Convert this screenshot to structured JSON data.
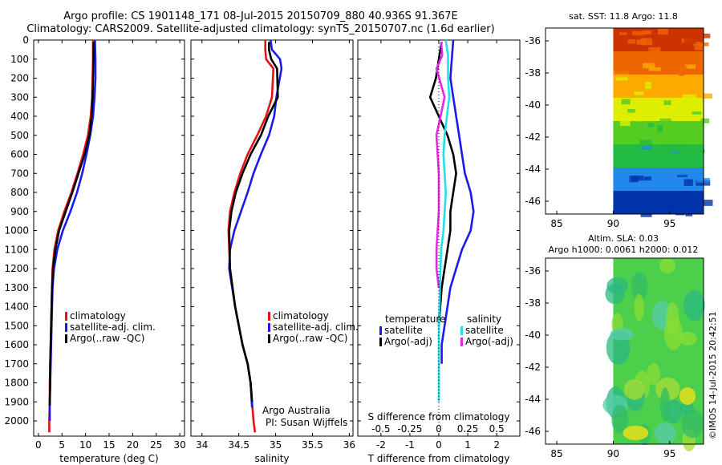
{
  "title": {
    "line1": "Argo profile: CS 1901148_171 08-Jul-2015 20150709_880 40.936S 91.367E",
    "line2": "Climatology: CARS2009. Satellite-adjusted climatology: synTS_20150707.nc (1.6d earlier)"
  },
  "credit": "©IMOS 14-Jul-2015 20:42:51",
  "colors": {
    "climatology": "#e81010",
    "satellite": "#1a1aee",
    "argo": "#000000",
    "satellite_s": "#22e0e8",
    "argo_s": "#ee22ee"
  },
  "chart_data": [
    {
      "id": "temperature",
      "type": "line",
      "xlabel": "temperature (deg C)",
      "ylabel": "",
      "xlim": [
        -1,
        31
      ],
      "ylim": [
        2080,
        0
      ],
      "xticks": [
        "0",
        "5",
        "10",
        "15",
        "20",
        "25",
        "30"
      ],
      "xtick_values": [
        0,
        5,
        10,
        15,
        20,
        25,
        30
      ],
      "yticks": [
        "0",
        "100",
        "200",
        "300",
        "400",
        "500",
        "600",
        "700",
        "800",
        "900",
        "1000",
        "1100",
        "1200",
        "1300",
        "1400",
        "1500",
        "1600",
        "1700",
        "1800",
        "1900",
        "2000"
      ],
      "ytick_values": [
        0,
        100,
        200,
        300,
        400,
        500,
        600,
        700,
        800,
        900,
        1000,
        1100,
        1200,
        1300,
        1400,
        1500,
        1600,
        1700,
        1800,
        1900,
        2000
      ],
      "legend": [
        "climatology",
        "satellite-adj. clim.",
        "Argo(..raw -QC)"
      ],
      "series": [
        {
          "name": "climatology",
          "x": [
            11.6,
            11.6,
            11.5,
            11.4,
            11.1,
            10.5,
            9.5,
            8.3,
            7.0,
            5.5,
            4.2,
            3.4,
            3.0,
            2.8,
            2.6,
            2.5,
            2.4,
            2.4,
            2.3,
            2.3
          ],
          "y": [
            0,
            100,
            200,
            300,
            400,
            500,
            600,
            700,
            800,
            900,
            1000,
            1100,
            1200,
            1400,
            1600,
            1700,
            1800,
            1900,
            2000,
            2060
          ]
        },
        {
          "name": "satellite-adj. clim.",
          "x": [
            12.0,
            12.1,
            12.1,
            11.9,
            11.6,
            11.0,
            10.2,
            9.3,
            8.2,
            6.8,
            5.2,
            4.0,
            3.3,
            3.0,
            2.8,
            2.6,
            2.5,
            2.4,
            2.4
          ],
          "y": [
            0,
            100,
            200,
            300,
            400,
            500,
            600,
            700,
            800,
            900,
            1000,
            1100,
            1200,
            1300,
            1500,
            1700,
            1800,
            1900,
            2000
          ]
        },
        {
          "name": "Argo(..raw -QC)",
          "x": [
            11.7,
            11.7,
            11.6,
            11.5,
            11.3,
            10.8,
            9.8,
            8.5,
            7.2,
            5.8,
            4.4,
            3.6,
            3.1,
            2.9,
            2.7,
            2.5,
            2.5,
            2.4
          ],
          "y": [
            10,
            100,
            200,
            300,
            400,
            500,
            600,
            700,
            800,
            900,
            1000,
            1100,
            1200,
            1300,
            1500,
            1700,
            1800,
            1920
          ]
        }
      ]
    },
    {
      "id": "salinity",
      "type": "line",
      "xlabel": "salinity",
      "ylabel": "",
      "xlim": [
        33.85,
        36.05
      ],
      "ylim": [
        2080,
        0
      ],
      "xticks": [
        "34",
        "34.5",
        "35",
        "35.5",
        "36"
      ],
      "xtick_values": [
        34,
        34.5,
        35,
        35.5,
        36
      ],
      "legend": [
        "climatology",
        "satellite-adj. clim.",
        "Argo(..raw -QC)"
      ],
      "annotation": [
        "Argo Australia",
        "PI: Susan Wijffels"
      ],
      "series": [
        {
          "name": "climatology",
          "x": [
            34.86,
            34.86,
            34.87,
            34.97,
            34.95,
            34.87,
            34.75,
            34.62,
            34.52,
            34.44,
            34.38,
            34.36,
            34.38,
            34.45,
            34.55,
            34.62,
            34.66,
            34.68,
            34.7,
            34.72
          ],
          "y": [
            0,
            50,
            100,
            150,
            300,
            400,
            500,
            600,
            700,
            800,
            900,
            1000,
            1200,
            1400,
            1600,
            1700,
            1800,
            1900,
            2000,
            2060
          ]
        },
        {
          "name": "satellite-adj. clim.",
          "x": [
            34.93,
            34.95,
            35.06,
            35.08,
            35.01,
            34.98,
            34.91,
            34.8,
            34.7,
            34.62,
            34.53,
            34.44,
            34.38,
            34.37,
            34.45,
            34.55,
            34.62,
            34.66,
            34.68
          ],
          "y": [
            0,
            50,
            100,
            150,
            300,
            400,
            500,
            600,
            700,
            800,
            900,
            1000,
            1100,
            1200,
            1400,
            1600,
            1700,
            1800,
            1930
          ]
        },
        {
          "name": "Argo(..raw -QC)",
          "x": [
            34.91,
            34.91,
            34.94,
            35.02,
            35.03,
            34.9,
            34.8,
            34.66,
            34.55,
            34.46,
            34.4,
            34.37,
            34.38,
            34.45,
            34.55,
            34.62,
            34.66,
            34.68
          ],
          "y": [
            10,
            50,
            100,
            150,
            300,
            400,
            500,
            600,
            700,
            800,
            900,
            1000,
            1200,
            1400,
            1600,
            1700,
            1800,
            1900
          ]
        }
      ]
    },
    {
      "id": "difference",
      "type": "line",
      "xlabel": "T difference from climatology",
      "xlabel_top": "S difference from climatology",
      "xlim": [
        -2.8,
        2.8
      ],
      "ylim": [
        2080,
        0
      ],
      "xticks": [
        "-2",
        "-1",
        "0",
        "1",
        "2"
      ],
      "xtick_values": [
        -2,
        -1,
        0,
        1,
        2
      ],
      "xticks_top": [
        "-0.5",
        "-0.25",
        "0",
        "0.25",
        "0.5"
      ],
      "xtick_top_values": [
        -0.5,
        -0.25,
        0,
        0.25,
        0.5
      ],
      "legend_headers": [
        "temperature",
        "salinity"
      ],
      "legend": [
        "satellite",
        "Argo(-adj)",
        "satellite",
        "Argo(-adj)"
      ],
      "series": [
        {
          "name": "satellite",
          "quantity": "temperature",
          "x": [
            0.5,
            0.45,
            0.4,
            0.5,
            0.6,
            0.7,
            0.8,
            0.9,
            1.1,
            1.2,
            1.1,
            0.8,
            0.6,
            0.4,
            0.3,
            0.2,
            0.1,
            0.1
          ],
          "y": [
            0,
            100,
            200,
            300,
            400,
            500,
            600,
            700,
            800,
            900,
            1000,
            1100,
            1200,
            1300,
            1400,
            1500,
            1600,
            1700
          ]
        },
        {
          "name": "Argo(-adj)",
          "quantity": "temperature",
          "x": [
            0.1,
            0.0,
            -0.1,
            -0.3,
            0.0,
            0.3,
            0.5,
            0.6,
            0.5,
            0.4,
            0.4,
            0.3,
            0.2,
            0.1,
            0.05,
            0.0
          ],
          "y": [
            10,
            100,
            200,
            300,
            400,
            500,
            600,
            700,
            800,
            900,
            1000,
            1100,
            1200,
            1300,
            1400,
            1500
          ]
        },
        {
          "name": "satellite",
          "quantity": "salinity",
          "x": [
            0.06,
            0.08,
            0.08,
            0.09,
            0.05,
            0.04,
            0.05,
            0.06,
            0.04,
            0.02,
            0.01,
            0.0,
            0.0,
            0.0
          ],
          "y": [
            0,
            80,
            200,
            300,
            500,
            600,
            700,
            800,
            1000,
            1100,
            1300,
            1500,
            1700,
            1900
          ]
        },
        {
          "name": "Argo(-adj)",
          "quantity": "salinity",
          "x": [
            0.02,
            0.03,
            -0.02,
            0.05,
            -0.02,
            0.0,
            0.0,
            -0.02,
            -0.02,
            0.0
          ],
          "y": [
            10,
            80,
            150,
            300,
            500,
            700,
            900,
            1100,
            1200,
            1300
          ]
        }
      ]
    },
    {
      "id": "sst_map",
      "type": "heatmap",
      "title": "sat. SST: 11.8  Argo: 11.8",
      "xlim": [
        84,
        98
      ],
      "ylim": [
        -46.8,
        -35.2
      ],
      "xticks": [
        "85",
        "90",
        "95"
      ],
      "xtick_values": [
        85,
        90,
        95
      ],
      "yticks": [
        "-36",
        "-38",
        "-40",
        "-42",
        "-44",
        "-46"
      ],
      "ytick_values": [
        -36,
        -38,
        -40,
        -42,
        -44,
        -46
      ],
      "data_xrange": [
        90,
        98
      ],
      "colors_top_to_bottom": [
        "#cc3300",
        "#ee6600",
        "#ffaa00",
        "#ddee00",
        "#55cc22",
        "#22bb44",
        "#2288ee",
        "#0033aa"
      ]
    },
    {
      "id": "sla_map",
      "type": "heatmap",
      "title": "Altim. SLA: 0.03",
      "subtitle": "Argo h1000: 0.0061 h2000: 0.012",
      "xlim": [
        84,
        98
      ],
      "ylim": [
        -46.8,
        -35.2
      ],
      "xticks": [
        "85",
        "90",
        "95"
      ],
      "xtick_values": [
        85,
        90,
        95
      ],
      "yticks": [
        "-36",
        "-38",
        "-40",
        "-42",
        "-44",
        "-46"
      ],
      "ytick_values": [
        -36,
        -38,
        -40,
        -42,
        -44,
        -46
      ],
      "data_xrange": [
        90,
        98
      ],
      "base_color": "#4cd04c"
    }
  ]
}
